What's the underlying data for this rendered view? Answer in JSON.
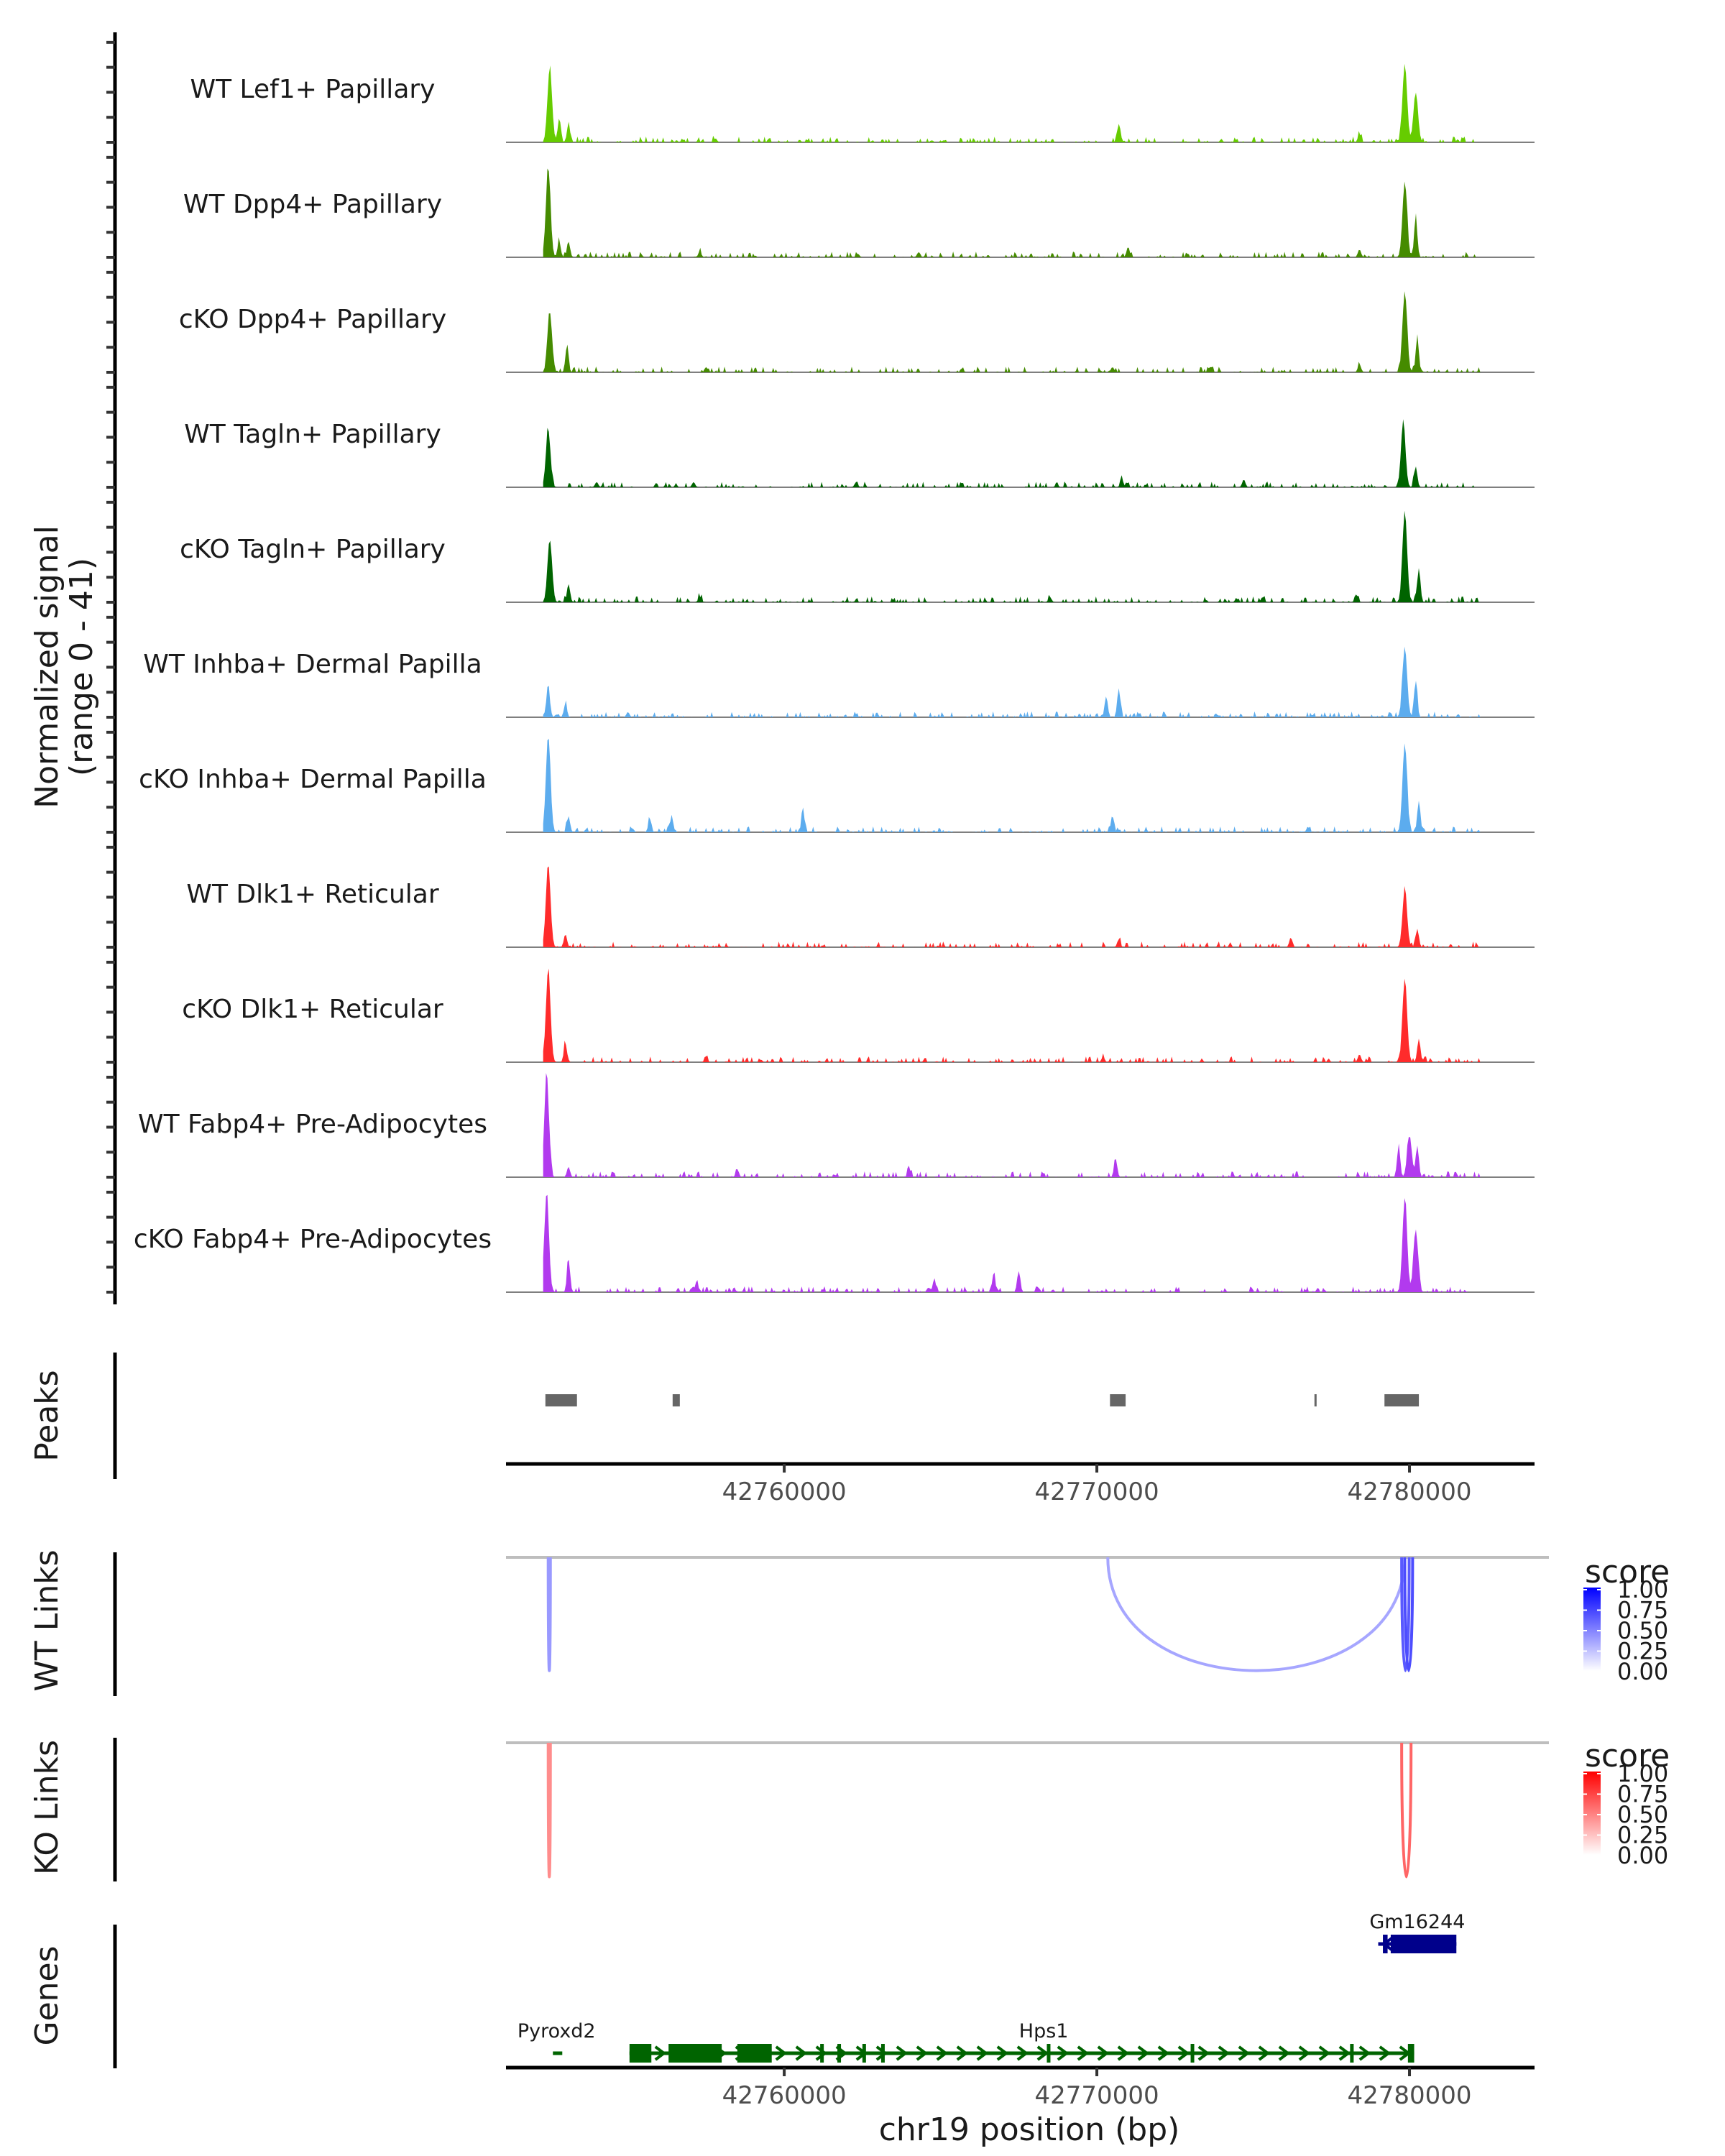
{
  "chart_data": {
    "type": "area",
    "title": "",
    "region": {
      "chrom": "chr19",
      "start": 42751100,
      "end": 42784000
    },
    "ylabel": "Normalized signal\n(range 0 - 41)",
    "ylabel_line1": "Normalized signal",
    "ylabel_line2": "(range 0 - 41)",
    "ylim": [
      0,
      41
    ],
    "xlabel": "chr19 position (bp)",
    "xticks": [
      42760000,
      42770000,
      42780000
    ],
    "xtick_labels": [
      "42760000",
      "42770000",
      "42780000"
    ],
    "tracks": [
      {
        "name": "WT Lef1+ Papillary",
        "color": "#66CC00",
        "peaks": [
          [
            42752500,
            28
          ],
          [
            42752800,
            8
          ],
          [
            42753100,
            7
          ],
          [
            42757800,
            1.5
          ],
          [
            42770700,
            7
          ],
          [
            42778400,
            3
          ],
          [
            42779850,
            30
          ],
          [
            42780200,
            19
          ]
        ]
      },
      {
        "name": "WT Dpp4+ Papillary",
        "color": "#458B00",
        "peaks": [
          [
            42752450,
            34
          ],
          [
            42752800,
            6
          ],
          [
            42753100,
            6
          ],
          [
            42757300,
            2
          ],
          [
            42764300,
            2
          ],
          [
            42771000,
            4
          ],
          [
            42778400,
            3
          ],
          [
            42779850,
            29
          ],
          [
            42780200,
            15
          ]
        ]
      },
      {
        "name": "cKO Dpp4+ Papillary",
        "color": "#458B00",
        "peaks": [
          [
            42752500,
            23
          ],
          [
            42753050,
            10
          ],
          [
            42757500,
            2
          ],
          [
            42770500,
            2
          ],
          [
            42778400,
            3
          ],
          [
            42779850,
            31
          ],
          [
            42780250,
            13
          ]
        ]
      },
      {
        "name": "WT Tagln+ Papillary",
        "color": "#006400",
        "peaks": [
          [
            42752450,
            22
          ],
          [
            42754000,
            2
          ],
          [
            42757100,
            2
          ],
          [
            42762300,
            2
          ],
          [
            42770800,
            3
          ],
          [
            42774700,
            3
          ],
          [
            42779800,
            24
          ],
          [
            42780200,
            8
          ]
        ]
      },
      {
        "name": "cKO Tagln+ Papillary",
        "color": "#006400",
        "peaks": [
          [
            42752500,
            24
          ],
          [
            42753100,
            7
          ],
          [
            42757300,
            2
          ],
          [
            42768500,
            2
          ],
          [
            42775300,
            2
          ],
          [
            42778300,
            3
          ],
          [
            42779850,
            35
          ],
          [
            42780300,
            13
          ]
        ]
      },
      {
        "name": "WT Inhba+ Dermal Papilla",
        "color": "#5CACEE",
        "peaks": [
          [
            42752450,
            13
          ],
          [
            42753000,
            5
          ],
          [
            42755000,
            2
          ],
          [
            42770300,
            8
          ],
          [
            42770700,
            11
          ],
          [
            42779850,
            27
          ],
          [
            42780200,
            14
          ]
        ]
      },
      {
        "name": "cKO Inhba+ Dermal Papilla",
        "color": "#5CACEE",
        "peaks": [
          [
            42752450,
            37
          ],
          [
            42753100,
            6
          ],
          [
            42755700,
            5
          ],
          [
            42756400,
            6
          ],
          [
            42760600,
            8
          ],
          [
            42770500,
            6
          ],
          [
            42779850,
            34
          ],
          [
            42780300,
            12
          ]
        ]
      },
      {
        "name": "WT Dlk1+ Reticular",
        "color": "#FF2B2B",
        "peaks": [
          [
            42752450,
            32
          ],
          [
            42753000,
            5
          ],
          [
            42770700,
            3
          ],
          [
            42776200,
            3
          ],
          [
            42779850,
            22
          ],
          [
            42780250,
            7
          ]
        ]
      },
      {
        "name": "cKO Dlk1+ Reticular",
        "color": "#FF2B2B",
        "peaks": [
          [
            42752450,
            35
          ],
          [
            42753000,
            7
          ],
          [
            42757500,
            2
          ],
          [
            42770200,
            2
          ],
          [
            42778400,
            3
          ],
          [
            42779850,
            32
          ],
          [
            42780300,
            9
          ]
        ]
      },
      {
        "name": "WT Fabp4+ Pre-Adipocytes",
        "color": "#B23AEE",
        "peaks": [
          [
            42752400,
            39
          ],
          [
            42753100,
            4
          ],
          [
            42758500,
            3
          ],
          [
            42764000,
            3
          ],
          [
            42770600,
            7
          ],
          [
            42779650,
            11
          ],
          [
            42780000,
            16
          ],
          [
            42780250,
            12
          ]
        ]
      },
      {
        "name": "cKO Fabp4+ Pre-Adipocytes",
        "color": "#B23AEE",
        "peaks": [
          [
            42752400,
            38
          ],
          [
            42753100,
            12
          ],
          [
            42757200,
            4
          ],
          [
            42764800,
            5
          ],
          [
            42766700,
            7
          ],
          [
            42767500,
            8
          ],
          [
            42779850,
            36
          ],
          [
            42780200,
            24
          ]
        ]
      }
    ],
    "peaks_track": {
      "label": "Peaks",
      "color": "#666666",
      "regions": [
        [
          42752360,
          42753370
        ],
        [
          42756430,
          42756660
        ],
        [
          42770420,
          42770920
        ],
        [
          42776960,
          42777020
        ],
        [
          42779200,
          42780300
        ]
      ]
    },
    "links": [
      {
        "label": "WT Links",
        "palette": "blue",
        "items": [
          {
            "start": 42752450,
            "end": 42752520,
            "score": 0.4
          },
          {
            "start": 42770350,
            "end": 42779850,
            "score": 0.25
          },
          {
            "start": 42779750,
            "end": 42779990,
            "score": 0.65
          },
          {
            "start": 42779850,
            "end": 42780100,
            "score": 0.7
          }
        ]
      },
      {
        "label": "KO Links",
        "palette": "red",
        "items": [
          {
            "start": 42752450,
            "end": 42752520,
            "score": 0.45
          },
          {
            "start": 42779750,
            "end": 42780050,
            "score": 0.6
          }
        ]
      }
    ],
    "legends": [
      {
        "title": "score",
        "ticks": [
          "1.00",
          "0.75",
          "0.50",
          "0.25",
          "0.00"
        ],
        "high": "#0000FF",
        "low": "#FFFFFF"
      },
      {
        "title": "score",
        "ticks": [
          "1.00",
          "0.75",
          "0.50",
          "0.25",
          "0.00"
        ],
        "high": "#FF0000",
        "low": "#FFFFFF"
      }
    ],
    "genes_track": {
      "label": "Genes",
      "genes": [
        {
          "name": "Pyroxd2",
          "strand": "-",
          "start": 42752600,
          "end": 42752900,
          "color": "#006400",
          "row": 1,
          "exons": []
        },
        {
          "name": "Hps1",
          "strand": "-",
          "start": 42755050,
          "end": 42780150,
          "color": "#006400",
          "row": 1,
          "exons": [
            [
              42755050,
              42755750
            ],
            [
              42756300,
              42758000
            ],
            [
              42758500,
              42759600
            ],
            [
              42761150,
              42761250
            ],
            [
              42761700,
              42761800
            ],
            [
              42762500,
              42762600
            ],
            [
              42763100,
              42763200
            ],
            [
              42768400,
              42768500
            ],
            [
              42773000,
              42773100
            ],
            [
              42778100,
              42778200
            ],
            [
              42779950,
              42780150
            ]
          ]
        },
        {
          "name": "Gm16244",
          "strand": "+",
          "start": 42779000,
          "end": 42781500,
          "color": "#00008B",
          "row": 0,
          "exons": [
            [
              42779150,
              42779300
            ],
            [
              42779400,
              42781500
            ]
          ]
        }
      ]
    }
  }
}
